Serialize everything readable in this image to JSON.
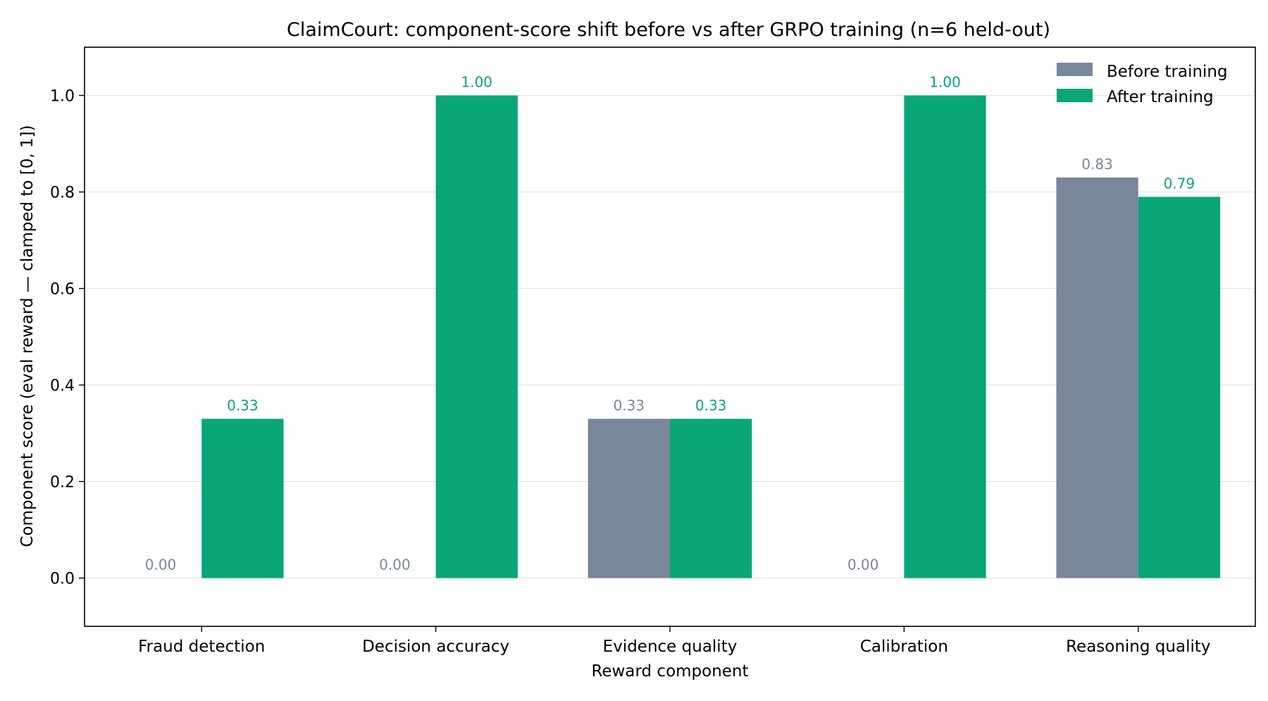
{
  "chart_data": {
    "type": "bar",
    "title": "ClaimCourt: component-score shift before vs after GRPO training (n=6 held-out)",
    "xlabel": "Reward component",
    "ylabel": "Component score (eval reward — clamped to [0, 1])",
    "categories": [
      "Fraud detection",
      "Decision accuracy",
      "Evidence quality",
      "Calibration",
      "Reasoning quality"
    ],
    "series": [
      {
        "name": "Before training",
        "color": "#7a8699",
        "values": [
          0.0,
          0.0,
          0.33,
          0.0,
          0.83
        ]
      },
      {
        "name": "After training",
        "color": "#09a678",
        "values": [
          0.33,
          1.0,
          0.33,
          1.0,
          0.79
        ]
      }
    ],
    "data_labels": [
      [
        "0.00",
        "0.00",
        "0.33",
        "0.00",
        "0.83"
      ],
      [
        "0.33",
        "1.00",
        "0.33",
        "1.00",
        "0.79"
      ]
    ],
    "ylim": [
      -0.1,
      1.1
    ],
    "yticks": [
      0.0,
      0.2,
      0.4,
      0.6,
      0.8,
      1.0
    ],
    "ytick_labels": [
      "0.0",
      "0.2",
      "0.4",
      "0.6",
      "0.8",
      "1.0"
    ],
    "grid": "horizontal",
    "legend_position": "top-right"
  }
}
